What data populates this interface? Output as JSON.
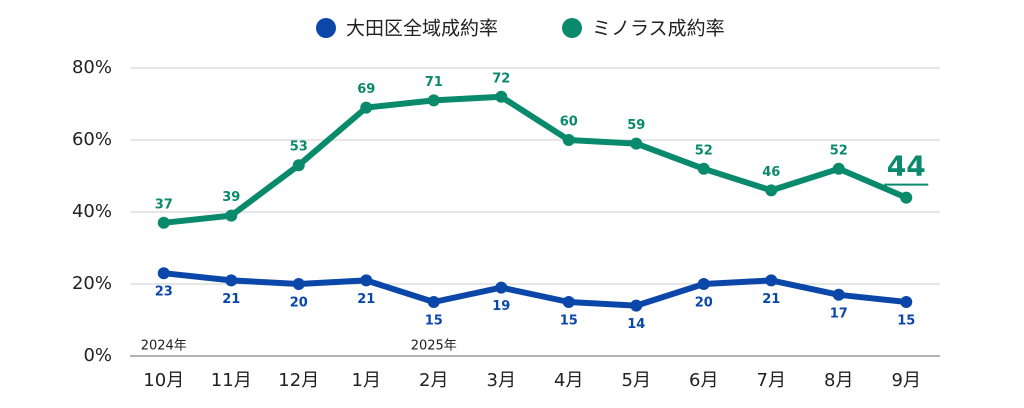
{
  "chart_data": {
    "type": "line",
    "categories": [
      "10月",
      "11月",
      "12月",
      "1月",
      "2月",
      "3月",
      "4月",
      "5月",
      "6月",
      "7月",
      "8月",
      "9月"
    ],
    "annotations": [
      "2024年",
      "2025年"
    ],
    "series": [
      {
        "name": "大田区全域成約率",
        "color": "#0b47a8",
        "values": [
          23,
          21,
          20,
          21,
          15,
          19,
          15,
          14,
          20,
          21,
          17,
          15
        ]
      },
      {
        "name": "ミノラス成約率",
        "color": "#0a8a6c",
        "values": [
          37,
          39,
          53,
          69,
          71,
          72,
          60,
          59,
          52,
          46,
          52,
          44
        ]
      }
    ],
    "ylim": [
      0,
      80
    ],
    "yticks": [
      {
        "value": 0,
        "label": "0%"
      },
      {
        "value": 20,
        "label": "20%"
      },
      {
        "value": 40,
        "label": "40%"
      },
      {
        "value": 60,
        "label": "60%"
      },
      {
        "value": 80,
        "label": "80%"
      }
    ],
    "grid": true
  }
}
